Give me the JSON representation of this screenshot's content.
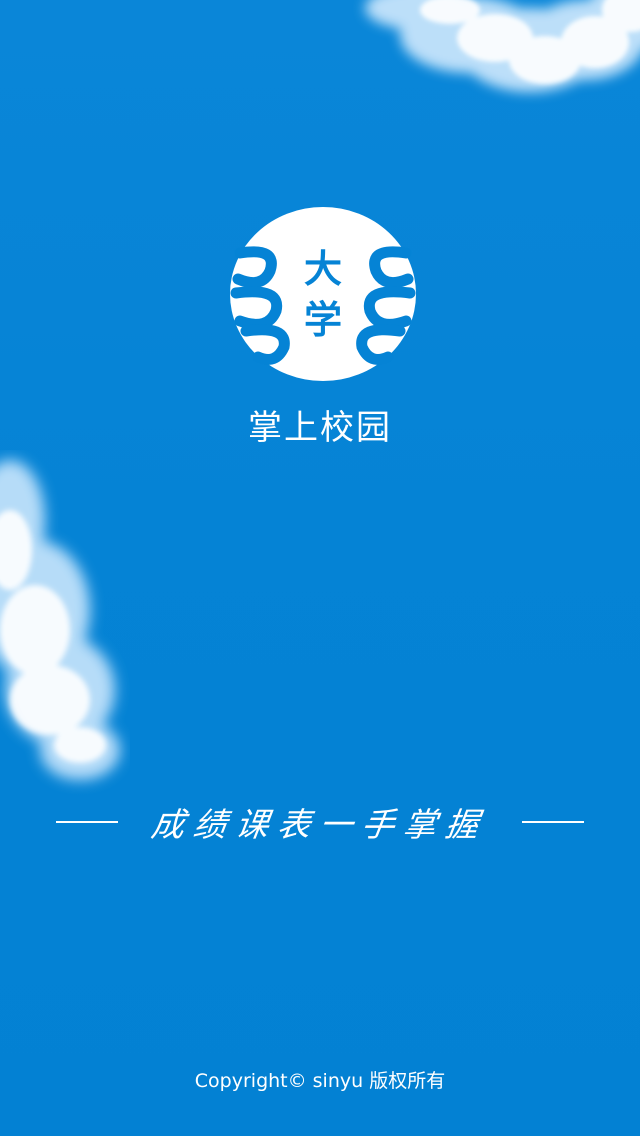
{
  "splash": {
    "logo_text_top": "大",
    "logo_text_bottom": "学",
    "app_name": "掌上校园",
    "slogan": "成绩课表一手掌握",
    "copyright": "Copyright© sinyu 版权所有"
  },
  "colors": {
    "background": "#0583d5",
    "text": "#ffffff",
    "logo_fill": "#ffffff",
    "logo_accent": "#0583d5"
  }
}
